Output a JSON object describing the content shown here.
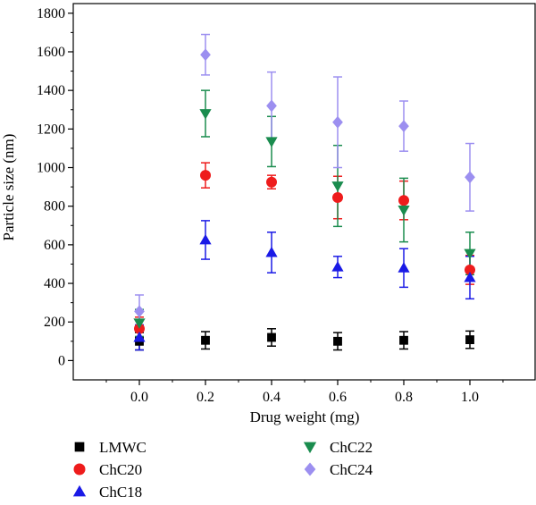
{
  "chart_data": {
    "type": "scatter",
    "xlabel": "Drug weight (mg)",
    "ylabel": "Particle size (nm)",
    "xlim": [
      -0.2,
      1.2
    ],
    "ylim": [
      -100,
      1850
    ],
    "x_ticks": [
      "0.0",
      "0.2",
      "0.4",
      "0.6",
      "0.8",
      "1.0"
    ],
    "y_ticks": [
      "0",
      "200",
      "400",
      "600",
      "800",
      "1000",
      "1200",
      "1400",
      "1600",
      "1800"
    ],
    "grid": false,
    "legend_position": "bottom",
    "error_bars": true,
    "series": [
      {
        "name": "LMWC",
        "marker": "square",
        "color": "#000000",
        "x": [
          0.0,
          0.2,
          0.4,
          0.6,
          0.8,
          1.0
        ],
        "y": [
          100,
          105,
          120,
          100,
          105,
          108
        ],
        "err": [
          45,
          45,
          45,
          45,
          45,
          45
        ]
      },
      {
        "name": "ChC20",
        "marker": "circle",
        "color": "#ee1c1c",
        "x": [
          0.0,
          0.2,
          0.4,
          0.6,
          0.8,
          1.0
        ],
        "y": [
          165,
          960,
          925,
          845,
          830,
          470
        ],
        "err": [
          60,
          65,
          35,
          110,
          100,
          75
        ]
      },
      {
        "name": "ChC18",
        "marker": "triangle-up",
        "color": "#1a1ae6",
        "x": [
          0.0,
          0.2,
          0.4,
          0.6,
          0.8,
          1.0
        ],
        "y": [
          120,
          625,
          560,
          485,
          480,
          430
        ],
        "err": [
          65,
          100,
          105,
          55,
          100,
          110
        ]
      },
      {
        "name": "ChC22",
        "marker": "triangle-down",
        "color": "#1a8c4e",
        "x": [
          0.0,
          0.2,
          0.4,
          0.6,
          0.8,
          1.0
        ],
        "y": [
          195,
          1280,
          1135,
          905,
          780,
          555
        ],
        "err": [
          70,
          120,
          130,
          210,
          165,
          110
        ]
      },
      {
        "name": "ChC24",
        "marker": "diamond",
        "color": "#9c8ff0",
        "x": [
          0.0,
          0.2,
          0.4,
          0.6,
          0.8,
          1.0
        ],
        "y": [
          255,
          1585,
          1320,
          1235,
          1215,
          950
        ],
        "err": [
          85,
          105,
          175,
          235,
          130,
          175
        ]
      }
    ]
  }
}
